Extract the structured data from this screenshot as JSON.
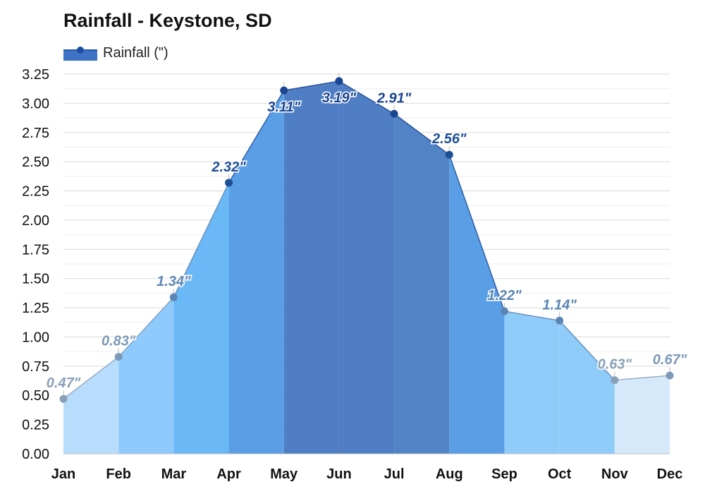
{
  "chart_data": {
    "type": "area",
    "title": "Rainfall - Keystone, SD",
    "categories": [
      "Jan",
      "Feb",
      "Mar",
      "Apr",
      "May",
      "Jun",
      "Jul",
      "Aug",
      "Sep",
      "Oct",
      "Nov",
      "Dec"
    ],
    "series": [
      {
        "name": "Rainfall (\")",
        "values": [
          0.47,
          0.83,
          1.34,
          2.32,
          3.11,
          3.19,
          2.91,
          2.56,
          1.22,
          1.14,
          0.63,
          0.67
        ],
        "labels": [
          "0.47\"",
          "0.83\"",
          "1.34\"",
          "2.32\"",
          "3.11\"",
          "3.19\"",
          "2.91\"",
          "2.56\"",
          "1.22\"",
          "1.14\"",
          "0.63\"",
          "0.67\""
        ]
      }
    ],
    "ylim": [
      0,
      3.25
    ],
    "yticks": [
      "0.00",
      "0.25",
      "0.50",
      "0.75",
      "1.00",
      "1.25",
      "1.50",
      "1.75",
      "2.00",
      "2.25",
      "2.50",
      "2.75",
      "3.00",
      "3.25"
    ],
    "grid": true,
    "legend": "top-left",
    "month_band_colors": [
      "#b7dcfc",
      "#8ecbfc",
      "#6bb8f6",
      "#5a9ee6",
      "#4f7ec4",
      "#4f7ec4",
      "#5183c6",
      "#5a9ee6",
      "#90ccfa",
      "#90ccfa",
      "#d6e9fb",
      "#b7dcfc"
    ],
    "label_colors": [
      "#8aa0b8",
      "#7d99b8",
      "#5b86b3",
      "#1e4f96",
      "#1a4591",
      "#1a4591",
      "#1a4591",
      "#1e4f96",
      "#5b86b3",
      "#5b86b3",
      "#8aa0b8",
      "#7d99b8"
    ],
    "line_color": "#1f58b0"
  }
}
